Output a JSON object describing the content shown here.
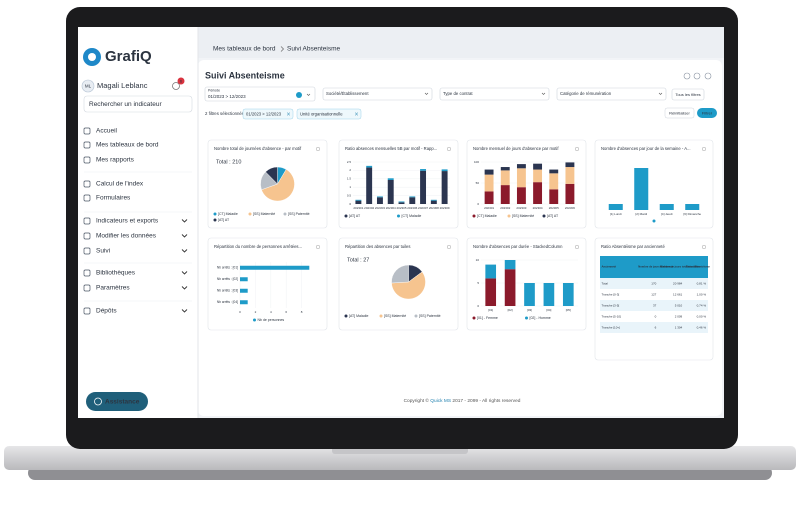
{
  "sidebar": {
    "logo": "GrafiQ",
    "avatar": "ML",
    "user": "Magali Leblanc",
    "badge": "6",
    "search": "Rechercher un indicateur",
    "menu": [
      {
        "label": "Accueil",
        "chevron": false
      },
      {
        "label": "Mes tableaux de bord",
        "chevron": false
      },
      {
        "label": "Mes rapports",
        "chevron": false
      },
      {
        "label": "Calcul de l'index",
        "chevron": false
      },
      {
        "label": "Formulaires",
        "chevron": false
      },
      {
        "label": "Indicateurs et exports",
        "chevron": true
      },
      {
        "label": "Modifier les données",
        "chevron": true
      },
      {
        "label": "Suivi",
        "chevron": true
      },
      {
        "label": "Bibliothèques",
        "chevron": true
      },
      {
        "label": "Paramètres",
        "chevron": true
      },
      {
        "label": "Dépôts",
        "chevron": true
      }
    ],
    "assistance": "Assistance"
  },
  "breadcrumb": [
    "Mes tableaux de bord",
    "Suivi Absenteisme"
  ],
  "page": {
    "title": "Suivi Absenteisme"
  },
  "filters": {
    "period_label": "Période",
    "period": "01/2023 > 12/2023",
    "selects": [
      "Société/Établissement",
      "Type de contrat",
      "Catégorie de rémunération"
    ],
    "all_filters": "Tous les filtres",
    "selected_count": "2 filtres sélectionnés",
    "chips": [
      "01/2023 > 12/2023",
      "Unité organisationnelle"
    ],
    "reset": "Réinitialiser",
    "apply": "Filtrer"
  },
  "cards": [
    {
      "title": "Nombre total de journées d'absence - par motif",
      "chart": {
        "type": "pie",
        "total": "Total : 210",
        "categories": [
          "[CT] Maladie",
          "[SS] Maternité",
          "[SS] Paternité",
          "[AT] AT"
        ],
        "values": [
          18,
          128,
          38,
          26
        ],
        "colors": [
          "#1e9bc8",
          "#f6c48f",
          "#b8bec6",
          "#2b3550"
        ]
      }
    },
    {
      "title": "Ratio absences mensuelles 5B par motif - Rapp...",
      "chart": {
        "type": "bar",
        "categories": [
          "202301",
          "202302",
          "202303",
          "202304",
          "202305",
          "202306",
          "202307",
          "202308",
          "202309"
        ],
        "series": [
          {
            "name": "[AT] AT",
            "color": "#2b3550",
            "values": [
              0.2,
              2.17,
              0.4,
              1.43,
              0.1,
              0.4,
              1.98,
              0.2,
              1.96
            ]
          },
          {
            "name": "[CT] Maladie",
            "color": "#1e9bc8",
            "values": [
              0.05,
              0.1,
              0.05,
              0.1,
              0.05,
              0.05,
              0.1,
              0.05,
              0.1
            ]
          }
        ],
        "ylim": [
          0,
          2.5
        ],
        "yticks": [
          0,
          0.5,
          1,
          1.5,
          2,
          2.5
        ]
      }
    },
    {
      "title": "Nombre mensuel de jours d'absence par motif",
      "chart": {
        "type": "bar",
        "categories": [
          "202301",
          "202302",
          "202303",
          "202304",
          "202305",
          "202306"
        ],
        "series": [
          {
            "name": "[CT] Maladie",
            "color": "#8b1a2b",
            "values": [
              30,
              45,
              40,
              52,
              35,
              48
            ]
          },
          {
            "name": "[SS] Maternité",
            "color": "#f6c48f",
            "values": [
              40,
              35,
              45,
              30,
              38,
              40
            ]
          },
          {
            "name": "[AT] AT",
            "color": "#2b3550",
            "values": [
              12,
              8,
              10,
              14,
              9,
              11
            ]
          }
        ],
        "ylim": [
          0,
          100
        ],
        "yticks": [
          0,
          50,
          100
        ]
      }
    },
    {
      "title": "Nombre d'absences par jour de la semaine - A...",
      "chart": {
        "type": "bar",
        "categories": [
          "[1] Lundi",
          "[2] Mardi",
          "[4] Jeudi",
          "[6] Dimanche"
        ],
        "series": [
          {
            "color": "#1e9bc8",
            "values": [
              1,
              7,
              1,
              1
            ]
          }
        ],
        "ylim": [
          0,
          8
        ]
      }
    },
    {
      "title": "Répartition du nombre de personnes arrêtées...",
      "chart": {
        "type": "hbar",
        "categories": [
          "Nb arrêts : [01]",
          "Nb arrêts : [02]",
          "Nb arrêts : [03]",
          "Nb arrêts : [04]"
        ],
        "values": [
          9,
          1,
          1,
          1
        ],
        "color": "#1e9bc8",
        "legend": "Nb de personnes",
        "xlim": [
          0,
          10
        ],
        "xticks": [
          0,
          2,
          4,
          6,
          8
        ]
      }
    },
    {
      "title": "Répartition des absences par tuiles",
      "chart": {
        "type": "pie",
        "total": "Total : 27",
        "categories": [
          "[AT] Maladie",
          "[SS] Maternité",
          "[SS] Paternité"
        ],
        "values": [
          4,
          16,
          7
        ],
        "colors": [
          "#2b3550",
          "#f6c48f",
          "#b8bec6"
        ]
      }
    },
    {
      "title": "Nombre d'absences par durée - StackedColumn",
      "chart": {
        "type": "bar",
        "categories": [
          "[01]",
          "[02]",
          "[03]",
          "[04]",
          "[05]"
        ],
        "series": [
          {
            "name": "[01] - Femme",
            "color": "#8b1a2b",
            "values": [
              6,
              8,
              0,
              0,
              0
            ]
          },
          {
            "name": "[02] - Homme",
            "color": "#1e9bc8",
            "values": [
              3,
              2,
              5,
              5,
              5
            ]
          }
        ],
        "ylim": [
          0,
          10
        ],
        "yticks": [
          0,
          5,
          10
        ]
      }
    },
    {
      "title": "Ratio Absentéisme par ancienneté",
      "chart": {
        "type": "table",
        "columns": [
          "Ancienneté",
          "Nombre de jours d'absence",
          "Nombre de jours total travaillés",
          "Ratio Absentéisme"
        ],
        "rows": [
          [
            "Total",
            "170",
            "20 984",
            "0,81 %"
          ],
          [
            "Tranche [0-3[",
            "127",
            "12 661",
            "1,00 %"
          ],
          [
            "Tranche [3-5[",
            "37",
            "5 010",
            "0,74 %"
          ],
          [
            "Tranche [5-10[",
            "0",
            "2 009",
            "0,00 %"
          ],
          [
            "Tranche [10+[",
            "6",
            "1 304",
            "0,46 %"
          ]
        ]
      }
    }
  ],
  "footer": {
    "prefix": "Copyright ©",
    "brand": "Quick MS",
    "suffix": "2017 - 2099 - All rights reserved"
  }
}
